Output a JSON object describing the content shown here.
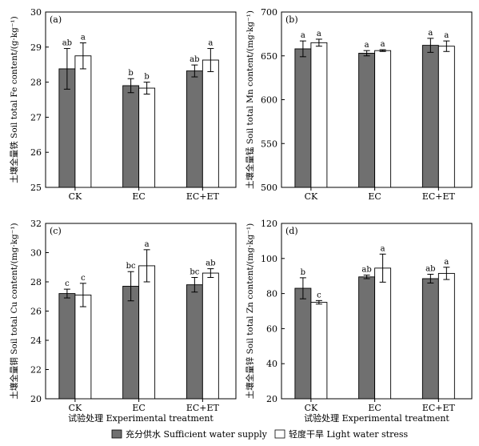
{
  "legend": {
    "items": [
      {
        "label": "充分供水 Sufficient water supply",
        "color": "#707070"
      },
      {
        "label": "轻度干旱 Light water stress",
        "color": "#ffffff"
      }
    ]
  },
  "colors": {
    "series1": "#707070",
    "series2": "#ffffff",
    "stroke": "#000000"
  },
  "chart_data": [
    {
      "type": "bar",
      "panel_label": "(a)",
      "categories": [
        "CK",
        "EC",
        "EC+ET"
      ],
      "series": [
        {
          "name": "充分供水 Sufficient water supply",
          "values": [
            28.38,
            27.9,
            28.32
          ],
          "errors": [
            0.58,
            0.2,
            0.17
          ],
          "letters": [
            "ab",
            "b",
            "ab"
          ]
        },
        {
          "name": "轻度干旱 Light water stress",
          "values": [
            28.75,
            27.83,
            28.63
          ],
          "errors": [
            0.37,
            0.17,
            0.33
          ],
          "letters": [
            "a",
            "b",
            "a"
          ]
        }
      ],
      "ylim": [
        25,
        30
      ],
      "yticks": [
        25,
        26,
        27,
        28,
        29,
        30
      ],
      "ylabel": "土壤全量铁 Soil total Fe content/(g·kg⁻¹)",
      "xlabel": ""
    },
    {
      "type": "bar",
      "panel_label": "(b)",
      "categories": [
        "CK",
        "EC",
        "EC+ET"
      ],
      "series": [
        {
          "name": "充分供水 Sufficient water supply",
          "values": [
            658,
            653,
            662
          ],
          "errors": [
            9,
            3,
            8
          ],
          "letters": [
            "a",
            "a",
            "a"
          ]
        },
        {
          "name": "轻度干旱 Light water stress",
          "values": [
            665,
            656,
            661
          ],
          "errors": [
            4,
            1,
            6
          ],
          "letters": [
            "a",
            "a",
            "a"
          ]
        }
      ],
      "ylim": [
        500,
        700
      ],
      "yticks": [
        500,
        550,
        600,
        650,
        700
      ],
      "ylabel": "土壤全量锰 Soil total Mn content/(mg·kg⁻¹)",
      "xlabel": ""
    },
    {
      "type": "bar",
      "panel_label": "(c)",
      "categories": [
        "CK",
        "EC",
        "EC+ET"
      ],
      "series": [
        {
          "name": "充分供水 Sufficient water supply",
          "values": [
            27.2,
            27.7,
            27.8
          ],
          "errors": [
            0.3,
            1.0,
            0.5
          ],
          "letters": [
            "c",
            "bc",
            "bc"
          ]
        },
        {
          "name": "轻度干旱 Light water stress",
          "values": [
            27.1,
            29.1,
            28.6
          ],
          "errors": [
            0.8,
            1.1,
            0.3
          ],
          "letters": [
            "c",
            "a",
            "ab"
          ]
        }
      ],
      "ylim": [
        20,
        32
      ],
      "yticks": [
        20,
        22,
        24,
        26,
        28,
        30,
        32
      ],
      "ylabel": "土壤全量铜 Soil total Cu content/(mg·kg⁻¹)",
      "xlabel": "试验处理 Experimental treatment"
    },
    {
      "type": "bar",
      "panel_label": "(d)",
      "categories": [
        "CK",
        "EC",
        "EC+ET"
      ],
      "series": [
        {
          "name": "充分供水 Sufficient water supply",
          "values": [
            83,
            89.5,
            88.5
          ],
          "errors": [
            6,
            1,
            2.5
          ],
          "letters": [
            "b",
            "ab",
            "ab"
          ]
        },
        {
          "name": "轻度干旱 Light water stress",
          "values": [
            75,
            94.5,
            91.5
          ],
          "errors": [
            1,
            8,
            3.5
          ],
          "letters": [
            "c",
            "a",
            "a"
          ]
        }
      ],
      "ylim": [
        20,
        120
      ],
      "yticks": [
        20,
        40,
        60,
        80,
        100,
        120
      ],
      "ylabel": "土壤全量锌 Soil total Zn content/(mg·kg⁻¹)",
      "xlabel": "试验处理 Experimental treatment"
    }
  ]
}
